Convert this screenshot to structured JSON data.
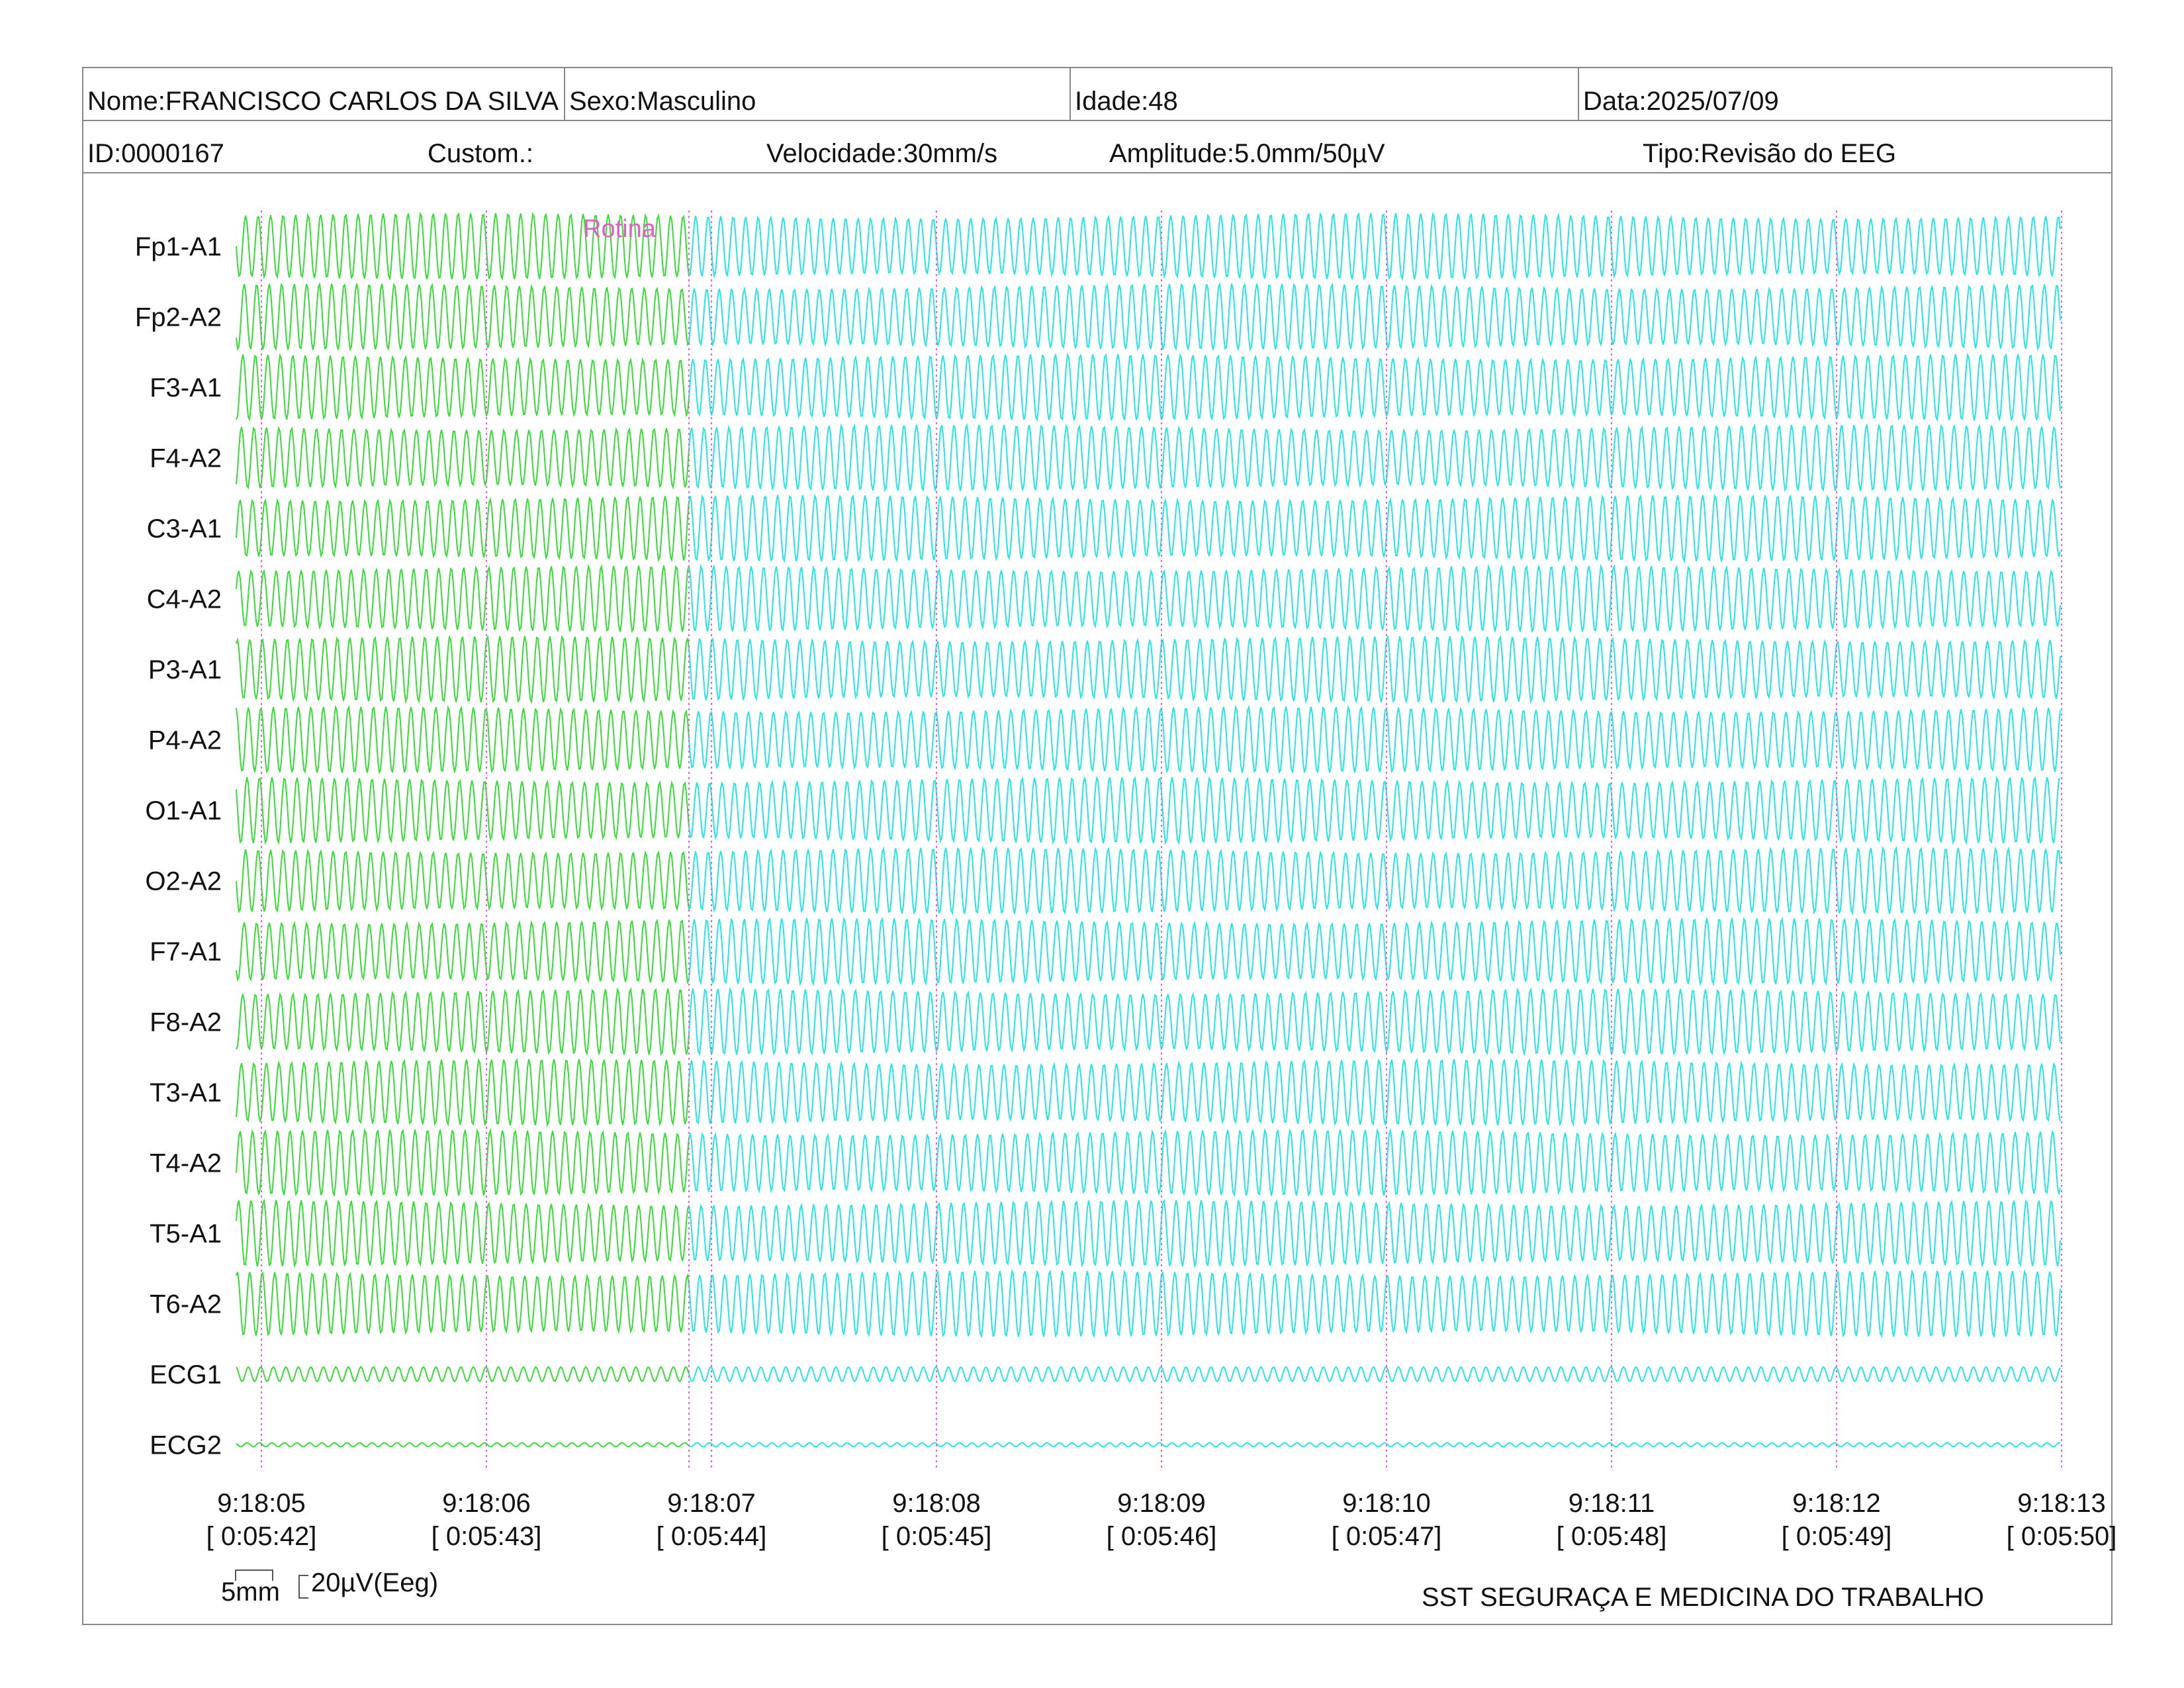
{
  "header": {
    "nome": "Nome:FRANCISCO CARLOS DA SILVA",
    "sexo": "Sexo:Masculino",
    "idade": "Idade:48",
    "data": "Data:2025/07/09",
    "id": "ID:0000167",
    "custom": "Custom.:",
    "velocidade": "Velocidade:30mm/s",
    "amplitude": "Amplitude:5.0mm/50µV",
    "tipo": "Tipo:Revisão do EEG"
  },
  "annotation": "Rotina",
  "scale_bar": {
    "time_label": "5mm",
    "amp_label": "20µV(Eeg)"
  },
  "footer": "SST SEGURAÇA E MEDICINA DO TRABALHO",
  "colors": {
    "segment_1": "#33dd33",
    "segment_2": "#22e6e6",
    "marker": "#e060e0",
    "annotation": "#e060c0"
  },
  "chart_data": {
    "type": "line",
    "channels": [
      "Fp1-A1",
      "Fp2-A2",
      "F3-A1",
      "F4-A2",
      "C3-A1",
      "C4-A2",
      "P3-A1",
      "P4-A2",
      "O1-A1",
      "O2-A2",
      "F7-A1",
      "F8-A2",
      "T3-A1",
      "T4-A2",
      "T5-A1",
      "T6-A2",
      "ECG1",
      "ECG2"
    ],
    "time_ticks": [
      {
        "clock": "9:18:05",
        "elapsed": "[ 0:05:42]"
      },
      {
        "clock": "9:18:06",
        "elapsed": "[ 0:05:43]"
      },
      {
        "clock": "9:18:07",
        "elapsed": "[ 0:05:44]"
      },
      {
        "clock": "9:18:08",
        "elapsed": "[ 0:05:45]"
      },
      {
        "clock": "9:18:09",
        "elapsed": "[ 0:05:46]"
      },
      {
        "clock": "9:18:10",
        "elapsed": "[ 0:05:47]"
      },
      {
        "clock": "9:18:11",
        "elapsed": "[ 0:05:48]"
      },
      {
        "clock": "9:18:12",
        "elapsed": "[ 0:05:49]"
      },
      {
        "clock": "9:18:13",
        "elapsed": "[ 0:05:50]"
      }
    ],
    "segment_change_time": "9:18:06.9",
    "annotation_time": "9:18:06.9",
    "approx_frequency_hz": 18
  }
}
